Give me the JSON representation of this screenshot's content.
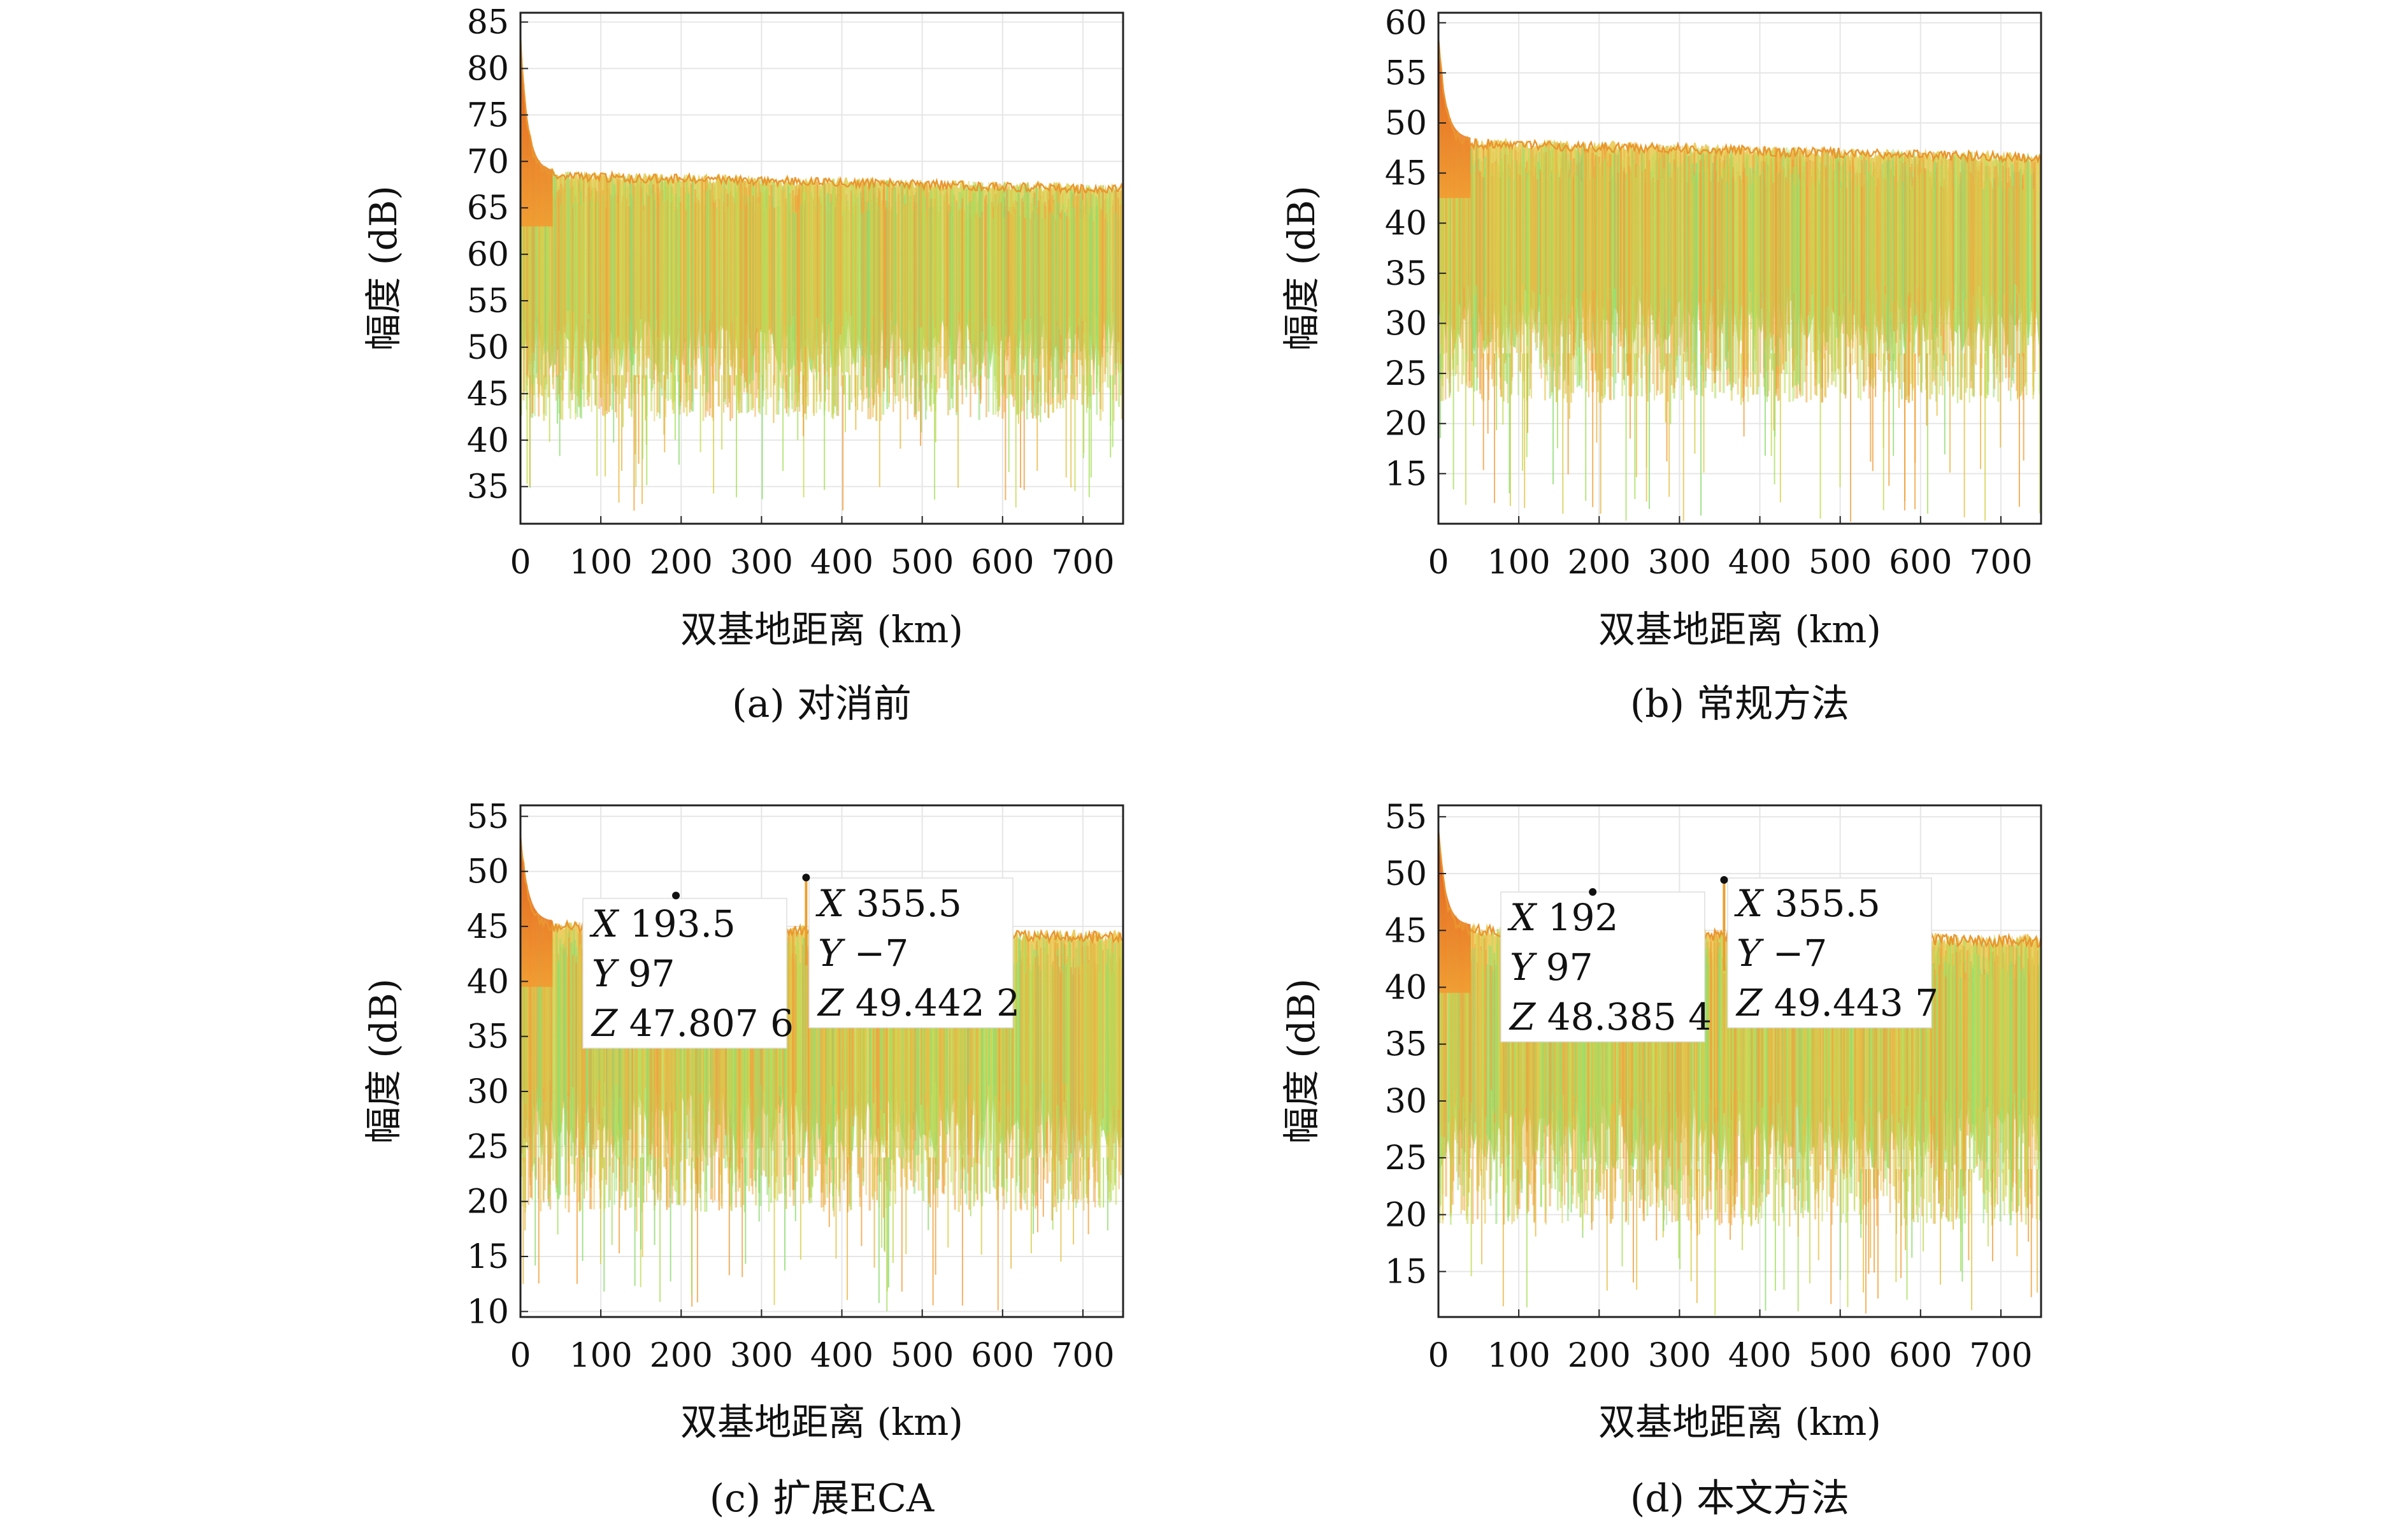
{
  "chart_data": [
    {
      "type": "3d-surface-side-view",
      "caption": "(a) 对消前",
      "xlabel": "双基地距离 (km)",
      "ylabel": "幅度 (dB)",
      "xlim": [
        0,
        750
      ],
      "ylim": [
        31,
        86
      ],
      "xticks": [
        0,
        100,
        200,
        300,
        400,
        500,
        600,
        700
      ],
      "yticks": [
        35,
        40,
        45,
        50,
        55,
        60,
        65,
        70,
        75,
        80,
        85
      ],
      "peak": 84,
      "floor_top": 69,
      "floor_top_end": 67.5,
      "low_band": 45,
      "min_spike": 32,
      "datatips": []
    },
    {
      "type": "3d-surface-side-view",
      "caption": "(b) 常规方法",
      "xlabel": "双基地距离 (km)",
      "ylabel": "幅度 (dB)",
      "xlim": [
        0,
        750
      ],
      "ylim": [
        10,
        61
      ],
      "xticks": [
        0,
        100,
        200,
        300,
        400,
        500,
        600,
        700
      ],
      "yticks": [
        15,
        20,
        25,
        30,
        35,
        40,
        45,
        50,
        55,
        60
      ],
      "peak": 59,
      "floor_top": 48.5,
      "floor_top_end": 47,
      "low_band": 25,
      "min_spike": 10,
      "datatips": []
    },
    {
      "type": "3d-surface-side-view",
      "caption": "(c) 扩展ECA",
      "xlabel": "双基地距离 (km)",
      "ylabel": "幅度 (dB)",
      "xlim": [
        0,
        750
      ],
      "ylim": [
        9.5,
        56
      ],
      "xticks": [
        0,
        100,
        200,
        300,
        400,
        500,
        600,
        700
      ],
      "yticks": [
        10,
        15,
        20,
        25,
        30,
        35,
        40,
        45,
        50,
        55
      ],
      "peak": 54,
      "floor_top": 45.5,
      "floor_top_end": 44.5,
      "low_band": 22,
      "min_spike": 10,
      "datatips": [
        {
          "x": 193.5,
          "z": 47.8076,
          "lines": [
            {
              "v": "X",
              "t": "193.5"
            },
            {
              "v": "Y",
              "t": "97"
            },
            {
              "v": "Z",
              "t": "47.807 6"
            }
          ]
        },
        {
          "x": 355.5,
          "z": 49.4422,
          "lines": [
            {
              "v": "X",
              "t": "355.5"
            },
            {
              "v": "Y",
              "t": "−7"
            },
            {
              "v": "Z",
              "t": "49.442 2"
            }
          ]
        }
      ]
    },
    {
      "type": "3d-surface-side-view",
      "caption": "(d) 本文方法",
      "xlabel": "双基地距离 (km)",
      "ylabel": "幅度 (dB)",
      "xlim": [
        0,
        750
      ],
      "ylim": [
        11,
        56
      ],
      "xticks": [
        0,
        100,
        200,
        300,
        400,
        500,
        600,
        700
      ],
      "yticks": [
        15,
        20,
        25,
        30,
        35,
        40,
        45,
        50,
        55
      ],
      "peak": 54,
      "floor_top": 45.5,
      "floor_top_end": 44.5,
      "low_band": 22,
      "min_spike": 11,
      "datatips": [
        {
          "x": 192,
          "z": 48.3854,
          "lines": [
            {
              "v": "X",
              "t": "192"
            },
            {
              "v": "Y",
              "t": "97"
            },
            {
              "v": "Z",
              "t": "48.385 4"
            }
          ]
        },
        {
          "x": 355.5,
          "z": 49.4437,
          "lines": [
            {
              "v": "X",
              "t": "355.5"
            },
            {
              "v": "Y",
              "t": "−7"
            },
            {
              "v": "Z",
              "t": "49.443 7"
            }
          ]
        }
      ]
    }
  ]
}
